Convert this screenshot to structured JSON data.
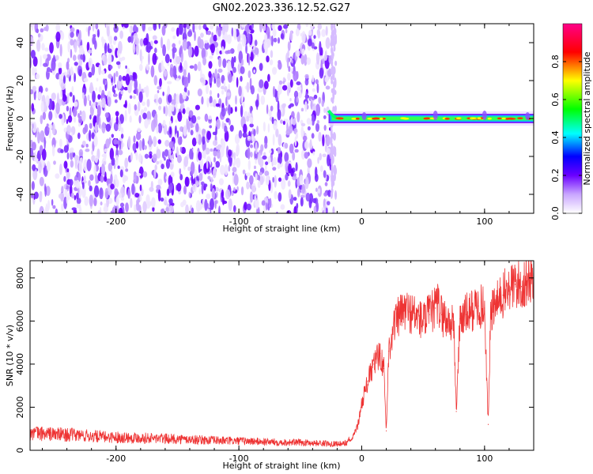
{
  "title": "GN02.2023.336.12.52.G27",
  "chart_data": [
    {
      "type": "heatmap",
      "xlabel": "Height of straight line (km)",
      "ylabel": "Frequency (Hz)",
      "xlim": [
        -270,
        140
      ],
      "ylim": [
        -50,
        50
      ],
      "xticks": [
        -200,
        -100,
        0,
        100
      ],
      "yticks": [
        -40,
        -20,
        0,
        20,
        40
      ],
      "noise_region_x": [
        -270,
        -25
      ],
      "signal_region_x": [
        -27,
        140
      ],
      "signal_frequency_hz": 0,
      "grid": false,
      "colorbar": {
        "label": "Normalized spectral amplitude",
        "range": [
          0.0,
          1.0
        ],
        "ticks": [
          "0.0",
          "0.2",
          "0.4",
          "0.6",
          "0.8"
        ],
        "colormap": [
          "#ffffff",
          "#6a00ff",
          "#0000ff",
          "#00ffff",
          "#00ff00",
          "#ffff00",
          "#ff0000",
          "#ff00aa"
        ]
      }
    },
    {
      "type": "line",
      "xlabel": "Height of straight line (km)",
      "ylabel": "SNR (10 * v/v)",
      "xlim": [
        -270,
        140
      ],
      "ylim": [
        0,
        8800
      ],
      "xticks": [
        -200,
        -100,
        0,
        100
      ],
      "yticks": [
        0,
        2000,
        4000,
        6000,
        8000
      ],
      "color": "#ee3333",
      "grid": false,
      "series": [
        {
          "x": [
            -270,
            -250,
            -230,
            -210,
            -190,
            -170,
            -150,
            -130,
            -110,
            -90,
            -70,
            -50,
            -30,
            -15,
            -8,
            -3,
            0,
            5,
            10,
            15,
            18,
            20,
            22,
            25,
            30,
            35,
            40,
            45,
            50,
            55,
            60,
            62,
            65,
            70,
            75,
            77,
            80,
            85,
            90,
            95,
            100,
            103,
            105,
            110,
            115,
            120,
            125,
            130,
            135,
            140
          ],
          "y": [
            800,
            750,
            700,
            620,
            600,
            560,
            520,
            480,
            440,
            420,
            380,
            360,
            320,
            300,
            500,
            1200,
            2200,
            3200,
            4000,
            4500,
            3800,
            900,
            4600,
            5600,
            6200,
            6500,
            6400,
            6200,
            6000,
            6300,
            6600,
            6800,
            6300,
            6000,
            5800,
            1800,
            6100,
            6300,
            6500,
            6700,
            6600,
            1200,
            6400,
            6800,
            7200,
            7500,
            7700,
            7600,
            7900,
            8200
          ]
        }
      ]
    }
  ]
}
